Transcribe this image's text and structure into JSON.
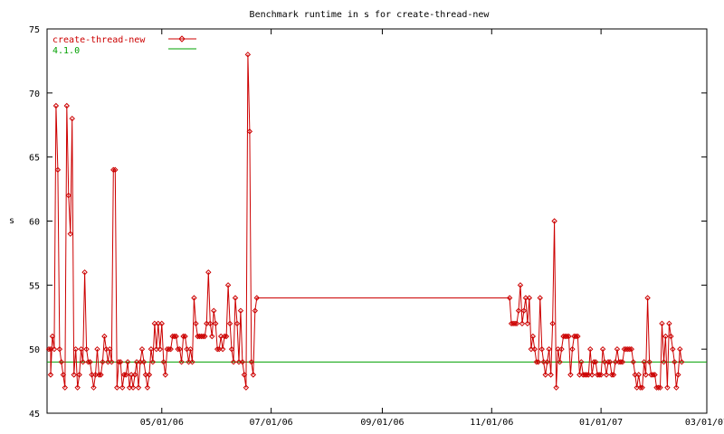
{
  "chart_data": {
    "type": "line",
    "title": "Benchmark runtime in s for create-thread-new",
    "ylabel": "s",
    "xlabel": "",
    "ylim": [
      45,
      75
    ],
    "xlim": [
      "2006-02-26",
      "2007-03-01"
    ],
    "y_ticks": [
      "45",
      "50",
      "55",
      "60",
      "65",
      "70",
      "75"
    ],
    "x_ticks": [
      {
        "date": "2006-05-01",
        "label": "05/01/06"
      },
      {
        "date": "2006-07-01",
        "label": "07/01/06"
      },
      {
        "date": "2006-09-01",
        "label": "09/01/06"
      },
      {
        "date": "2006-11-01",
        "label": "11/01/06"
      },
      {
        "date": "2007-01-01",
        "label": "01/01/07"
      },
      {
        "date": "2007-03-01",
        "label": "03/01/07"
      }
    ],
    "legend_position": "top-left",
    "grid": false,
    "series": [
      {
        "name": "create-thread-new",
        "color": "#cc0000",
        "marker": "diamond",
        "points": [
          [
            "2006-02-27",
            50
          ],
          [
            "2006-02-28",
            50
          ],
          [
            "2006-02-28",
            48
          ],
          [
            "2006-03-01",
            51
          ],
          [
            "2006-03-02",
            50
          ],
          [
            "2006-03-03",
            69
          ],
          [
            "2006-03-04",
            64
          ],
          [
            "2006-03-05",
            50
          ],
          [
            "2006-03-06",
            49
          ],
          [
            "2006-03-07",
            48
          ],
          [
            "2006-03-08",
            47
          ],
          [
            "2006-03-09",
            69
          ],
          [
            "2006-03-10",
            62
          ],
          [
            "2006-03-11",
            59
          ],
          [
            "2006-03-12",
            68
          ],
          [
            "2006-03-13",
            48
          ],
          [
            "2006-03-14",
            50
          ],
          [
            "2006-03-15",
            47
          ],
          [
            "2006-03-16",
            48
          ],
          [
            "2006-03-17",
            50
          ],
          [
            "2006-03-18",
            49
          ],
          [
            "2006-03-19",
            56
          ],
          [
            "2006-03-20",
            50
          ],
          [
            "2006-03-21",
            49
          ],
          [
            "2006-03-22",
            49
          ],
          [
            "2006-03-23",
            48
          ],
          [
            "2006-03-24",
            47
          ],
          [
            "2006-03-25",
            48
          ],
          [
            "2006-03-26",
            50
          ],
          [
            "2006-03-27",
            48
          ],
          [
            "2006-03-28",
            48
          ],
          [
            "2006-03-29",
            49
          ],
          [
            "2006-03-30",
            51
          ],
          [
            "2006-03-31",
            50
          ],
          [
            "2006-04-01",
            49
          ],
          [
            "2006-04-02",
            50
          ],
          [
            "2006-04-03",
            49
          ],
          [
            "2006-04-04",
            64
          ],
          [
            "2006-04-05",
            64
          ],
          [
            "2006-04-06",
            47
          ],
          [
            "2006-04-07",
            49
          ],
          [
            "2006-04-08",
            49
          ],
          [
            "2006-04-09",
            47
          ],
          [
            "2006-04-10",
            48
          ],
          [
            "2006-04-11",
            48
          ],
          [
            "2006-04-12",
            49
          ],
          [
            "2006-04-13",
            47
          ],
          [
            "2006-04-14",
            48
          ],
          [
            "2006-04-15",
            47
          ],
          [
            "2006-04-16",
            48
          ],
          [
            "2006-04-17",
            49
          ],
          [
            "2006-04-18",
            47
          ],
          [
            "2006-04-19",
            49
          ],
          [
            "2006-04-20",
            50
          ],
          [
            "2006-04-21",
            49
          ],
          [
            "2006-04-22",
            48
          ],
          [
            "2006-04-23",
            47
          ],
          [
            "2006-04-24",
            48
          ],
          [
            "2006-04-25",
            50
          ],
          [
            "2006-04-26",
            49
          ],
          [
            "2006-04-27",
            52
          ],
          [
            "2006-04-28",
            50
          ],
          [
            "2006-04-29",
            52
          ],
          [
            "2006-04-30",
            50
          ],
          [
            "2006-05-01",
            52
          ],
          [
            "2006-05-02",
            49
          ],
          [
            "2006-05-03",
            48
          ],
          [
            "2006-05-04",
            50
          ],
          [
            "2006-05-05",
            50
          ],
          [
            "2006-05-06",
            50
          ],
          [
            "2006-05-07",
            51
          ],
          [
            "2006-05-08",
            51
          ],
          [
            "2006-05-09",
            51
          ],
          [
            "2006-05-10",
            50
          ],
          [
            "2006-05-11",
            50
          ],
          [
            "2006-05-12",
            49
          ],
          [
            "2006-05-13",
            51
          ],
          [
            "2006-05-14",
            51
          ],
          [
            "2006-05-15",
            50
          ],
          [
            "2006-05-16",
            49
          ],
          [
            "2006-05-17",
            50
          ],
          [
            "2006-05-18",
            49
          ],
          [
            "2006-05-19",
            54
          ],
          [
            "2006-05-20",
            52
          ],
          [
            "2006-05-21",
            51
          ],
          [
            "2006-05-22",
            51
          ],
          [
            "2006-05-23",
            51
          ],
          [
            "2006-05-24",
            51
          ],
          [
            "2006-05-25",
            51
          ],
          [
            "2006-05-26",
            52
          ],
          [
            "2006-05-27",
            56
          ],
          [
            "2006-05-28",
            52
          ],
          [
            "2006-05-29",
            51
          ],
          [
            "2006-05-30",
            53
          ],
          [
            "2006-05-31",
            52
          ],
          [
            "2006-06-01",
            50
          ],
          [
            "2006-06-02",
            50
          ],
          [
            "2006-06-03",
            51
          ],
          [
            "2006-06-04",
            50
          ],
          [
            "2006-06-05",
            51
          ],
          [
            "2006-06-06",
            51
          ],
          [
            "2006-06-07",
            55
          ],
          [
            "2006-06-08",
            52
          ],
          [
            "2006-06-09",
            50
          ],
          [
            "2006-06-10",
            49
          ],
          [
            "2006-06-11",
            54
          ],
          [
            "2006-06-12",
            52
          ],
          [
            "2006-06-13",
            49
          ],
          [
            "2006-06-14",
            53
          ],
          [
            "2006-06-15",
            49
          ],
          [
            "2006-06-16",
            48
          ],
          [
            "2006-06-17",
            47
          ],
          [
            "2006-06-18",
            73
          ],
          [
            "2006-06-19",
            67
          ],
          [
            "2006-06-20",
            49
          ],
          [
            "2006-06-21",
            48
          ],
          [
            "2006-06-22",
            53
          ],
          [
            "2006-06-23",
            54
          ],
          [
            "2006-11-11",
            54
          ],
          [
            "2006-11-12",
            52
          ],
          [
            "2006-11-13",
            52
          ],
          [
            "2006-11-14",
            52
          ],
          [
            "2006-11-15",
            52
          ],
          [
            "2006-11-16",
            53
          ],
          [
            "2006-11-17",
            55
          ],
          [
            "2006-11-18",
            52
          ],
          [
            "2006-11-19",
            53
          ],
          [
            "2006-11-20",
            54
          ],
          [
            "2006-11-21",
            52
          ],
          [
            "2006-11-22",
            54
          ],
          [
            "2006-11-23",
            50
          ],
          [
            "2006-11-24",
            51
          ],
          [
            "2006-11-25",
            50
          ],
          [
            "2006-11-26",
            49
          ],
          [
            "2006-11-27",
            49
          ],
          [
            "2006-11-28",
            54
          ],
          [
            "2006-11-29",
            50
          ],
          [
            "2006-11-30",
            49
          ],
          [
            "2006-12-01",
            48
          ],
          [
            "2006-12-02",
            49
          ],
          [
            "2006-12-03",
            50
          ],
          [
            "2006-12-04",
            48
          ],
          [
            "2006-12-05",
            52
          ],
          [
            "2006-12-06",
            60
          ],
          [
            "2006-12-07",
            47
          ],
          [
            "2006-12-08",
            50
          ],
          [
            "2006-12-09",
            49
          ],
          [
            "2006-12-10",
            50
          ],
          [
            "2006-12-11",
            51
          ],
          [
            "2006-12-12",
            51
          ],
          [
            "2006-12-13",
            51
          ],
          [
            "2006-12-14",
            51
          ],
          [
            "2006-12-15",
            48
          ],
          [
            "2006-12-16",
            50
          ],
          [
            "2006-12-17",
            51
          ],
          [
            "2006-12-18",
            51
          ],
          [
            "2006-12-19",
            51
          ],
          [
            "2006-12-20",
            48
          ],
          [
            "2006-12-21",
            49
          ],
          [
            "2006-12-22",
            48
          ],
          [
            "2006-12-23",
            48
          ],
          [
            "2006-12-24",
            48
          ],
          [
            "2006-12-25",
            48
          ],
          [
            "2006-12-26",
            50
          ],
          [
            "2006-12-27",
            48
          ],
          [
            "2006-12-28",
            49
          ],
          [
            "2006-12-29",
            49
          ],
          [
            "2006-12-30",
            48
          ],
          [
            "2006-12-31",
            48
          ],
          [
            "2007-01-01",
            48
          ],
          [
            "2007-01-02",
            50
          ],
          [
            "2007-01-03",
            49
          ],
          [
            "2007-01-04",
            48
          ],
          [
            "2007-01-05",
            49
          ],
          [
            "2007-01-06",
            49
          ],
          [
            "2007-01-07",
            48
          ],
          [
            "2007-01-08",
            48
          ],
          [
            "2007-01-09",
            49
          ],
          [
            "2007-01-10",
            50
          ],
          [
            "2007-01-11",
            49
          ],
          [
            "2007-01-12",
            49
          ],
          [
            "2007-01-13",
            49
          ],
          [
            "2007-01-14",
            50
          ],
          [
            "2007-01-15",
            50
          ],
          [
            "2007-01-16",
            50
          ],
          [
            "2007-01-17",
            50
          ],
          [
            "2007-01-18",
            50
          ],
          [
            "2007-01-19",
            49
          ],
          [
            "2007-01-20",
            48
          ],
          [
            "2007-01-21",
            47
          ],
          [
            "2007-01-22",
            48
          ],
          [
            "2007-01-23",
            47
          ],
          [
            "2007-01-24",
            47
          ],
          [
            "2007-01-25",
            49
          ],
          [
            "2007-01-26",
            48
          ],
          [
            "2007-01-27",
            54
          ],
          [
            "2007-01-28",
            49
          ],
          [
            "2007-01-29",
            48
          ],
          [
            "2007-01-30",
            48
          ],
          [
            "2007-01-31",
            48
          ],
          [
            "2007-02-01",
            47
          ],
          [
            "2007-02-02",
            47
          ],
          [
            "2007-02-03",
            47
          ],
          [
            "2007-02-04",
            52
          ],
          [
            "2007-02-05",
            49
          ],
          [
            "2007-02-06",
            51
          ],
          [
            "2007-02-07",
            47
          ],
          [
            "2007-02-08",
            52
          ],
          [
            "2007-02-09",
            51
          ],
          [
            "2007-02-10",
            50
          ],
          [
            "2007-02-11",
            49
          ],
          [
            "2007-02-12",
            47
          ],
          [
            "2007-02-13",
            48
          ],
          [
            "2007-02-14",
            50
          ],
          [
            "2007-02-15",
            49
          ]
        ]
      },
      {
        "name": "4.1.0",
        "color": "#00a000",
        "constant": 49
      }
    ]
  }
}
